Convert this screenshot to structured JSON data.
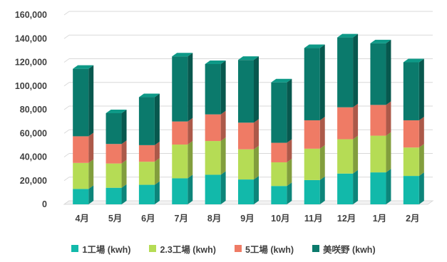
{
  "chart_data": {
    "type": "bar",
    "stacked": true,
    "style": "3d-column",
    "categories": [
      "4月",
      "5月",
      "6月",
      "7月",
      "8月",
      "9月",
      "10月",
      "11月",
      "12月",
      "1月",
      "2月"
    ],
    "ylim": [
      0,
      160000
    ],
    "yticks": [
      "0",
      "20,000",
      "40,000",
      "60,000",
      "80,000",
      "100,000",
      "120,000",
      "140,000",
      "160,000"
    ],
    "grid": true,
    "legend_position": "bottom",
    "series": [
      {
        "name": "1工場 (kwh)",
        "color": "#12b9aa",
        "values": [
          13000,
          14000,
          16500,
          22000,
          25000,
          21000,
          15500,
          20500,
          26000,
          27000,
          24000
        ]
      },
      {
        "name": "2.3工場 (kwh)",
        "color": "#b5dc55",
        "values": [
          22000,
          20500,
          19500,
          28500,
          28500,
          25500,
          20000,
          26500,
          29000,
          31000,
          24000
        ]
      },
      {
        "name": "5工場 (kwh)",
        "color": "#ef7b65",
        "values": [
          22500,
          16500,
          14000,
          19500,
          22500,
          22500,
          16500,
          24000,
          27000,
          26000,
          23000
        ]
      },
      {
        "name": "美咲野 (kwh)",
        "color": "#0b7a6c",
        "values": [
          57000,
          26000,
          40500,
          55000,
          42500,
          53000,
          51000,
          61000,
          59000,
          52000,
          49000
        ]
      }
    ]
  }
}
